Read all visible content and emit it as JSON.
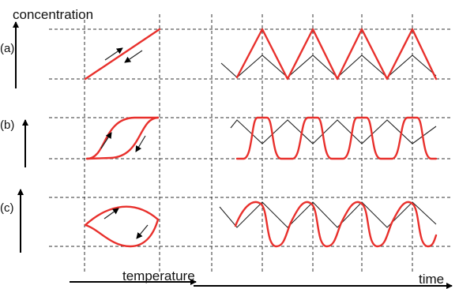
{
  "labels": {
    "concentration": "concentration",
    "temperature": "temperature",
    "time": "time",
    "panel_a": "(a)",
    "panel_b": "(b)",
    "panel_c": "(c)"
  },
  "colors": {
    "response": "#e8302c",
    "input": "#222222",
    "grid": "#333333"
  }
}
